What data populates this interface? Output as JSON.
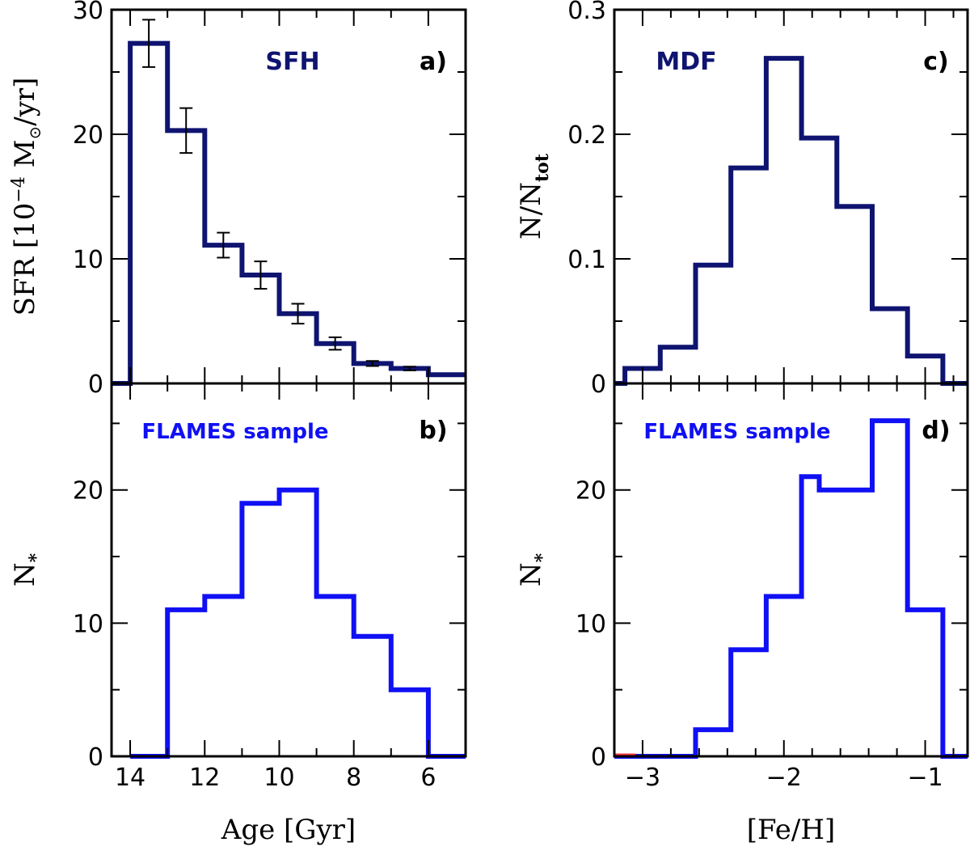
{
  "colors": {
    "dark_navy": "#0f1470",
    "bright_blue": "#1010f4",
    "axis": "#000000",
    "red_stub": "#ff3344"
  },
  "chart_data": [
    {
      "id": "a",
      "type": "histogram",
      "panel_label": "a)",
      "annotation": "SFH",
      "annotation_color": "#0f1470",
      "ylabel_main": "SFR [10",
      "ylabel_exp": "−4",
      "ylabel_unit": "M",
      "ylabel_sun": "⊙",
      "ylabel_tail": "/yr]",
      "xlabel": "",
      "xlim": [
        14.5,
        5
      ],
      "ylim": [
        0,
        30
      ],
      "y_ticks": [
        0,
        10,
        20,
        30
      ],
      "y_tick_labels": [
        "0",
        "10",
        "20",
        "30"
      ],
      "x_ticks": [
        14,
        12,
        10,
        8,
        6
      ],
      "x_tick_labels": [
        "",
        "",
        "",
        "",
        ""
      ],
      "bin_edges": [
        14.5,
        14,
        13,
        12,
        11,
        10,
        9,
        8,
        7,
        6,
        5
      ],
      "values": [
        0,
        27.3,
        20.3,
        11.1,
        8.7,
        5.6,
        3.2,
        1.6,
        1.2,
        0.7
      ],
      "errors": [
        {
          "x": 13.5,
          "y": 27.3,
          "err": 1.9
        },
        {
          "x": 12.5,
          "y": 20.3,
          "err": 1.8
        },
        {
          "x": 11.5,
          "y": 11.1,
          "err": 1.0
        },
        {
          "x": 10.5,
          "y": 8.7,
          "err": 1.1
        },
        {
          "x": 9.5,
          "y": 5.6,
          "err": 0.8
        },
        {
          "x": 8.5,
          "y": 3.2,
          "err": 0.5
        },
        {
          "x": 7.5,
          "y": 1.6,
          "err": 0.2
        },
        {
          "x": 6.5,
          "y": 1.2,
          "err": 0.15
        }
      ],
      "color": "#0f1470"
    },
    {
      "id": "b",
      "type": "histogram",
      "panel_label": "b)",
      "annotation": "FLAMES sample",
      "annotation_color": "#1010f4",
      "ylabel_main": "N",
      "ylabel_sub": "*",
      "xlabel": "Age [Gyr]",
      "xlim": [
        14.5,
        5
      ],
      "ylim": [
        0,
        28
      ],
      "y_ticks": [
        0,
        10,
        20
      ],
      "y_tick_labels": [
        "0",
        "10",
        "20"
      ],
      "x_ticks": [
        14,
        12,
        10,
        8,
        6
      ],
      "x_tick_labels": [
        "14",
        "12",
        "10",
        "8",
        "6"
      ],
      "bin_edges": [
        14,
        13,
        12.5,
        12,
        11,
        10,
        9,
        8,
        7,
        6,
        5
      ],
      "values": [
        0,
        11,
        11,
        12,
        19,
        20,
        12,
        9,
        5,
        0
      ],
      "color": "#1010f4"
    },
    {
      "id": "c",
      "type": "histogram",
      "panel_label": "c)",
      "annotation": "MDF",
      "annotation_color": "#0f1470",
      "ylabel_main": "N/N",
      "ylabel_sub": "tot",
      "xlabel": "",
      "xlim": [
        -3.2,
        -0.7
      ],
      "ylim": [
        0,
        0.3
      ],
      "y_ticks": [
        0,
        0.1,
        0.2,
        0.3
      ],
      "y_tick_labels": [
        "0",
        "0.1",
        "0.2",
        "0.3"
      ],
      "x_ticks": [
        -3,
        -2,
        -1
      ],
      "x_tick_labels": [
        "",
        "",
        ""
      ],
      "bin_edges": [
        -3.2,
        -3.125,
        -2.875,
        -2.625,
        -2.375,
        -2.125,
        -1.875,
        -1.625,
        -1.375,
        -1.125,
        -0.875,
        -0.7
      ],
      "values": [
        0,
        0.012,
        0.029,
        0.095,
        0.173,
        0.261,
        0.197,
        0.142,
        0.06,
        0.022,
        0
      ],
      "color": "#0f1470"
    },
    {
      "id": "d",
      "type": "histogram",
      "panel_label": "d)",
      "annotation": "FLAMES sample",
      "annotation_color": "#1010f4",
      "ylabel_main": "N",
      "ylabel_sub": "*",
      "xlabel": "[Fe/H]",
      "xlim": [
        -3.2,
        -0.7
      ],
      "ylim": [
        0,
        28
      ],
      "y_ticks": [
        0,
        10,
        20
      ],
      "y_tick_labels": [
        "0",
        "10",
        "20"
      ],
      "x_ticks": [
        -3,
        -2,
        -1
      ],
      "x_tick_labels": [
        "−3",
        "−2",
        "−1"
      ],
      "bin_edges": [
        -3.2,
        -2.625,
        -2.375,
        -2.125,
        -1.875,
        -1.75,
        -1.625,
        -1.375,
        -1.125,
        -0.875,
        -0.7
      ],
      "values": [
        0,
        2,
        8,
        12,
        21,
        20,
        20,
        25.2,
        11,
        0
      ],
      "color": "#1010f4"
    }
  ]
}
